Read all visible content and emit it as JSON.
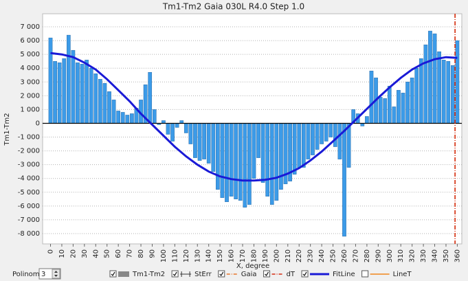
{
  "chart_data": {
    "type": "bar",
    "title": "Tm1-Tm2 Gaia  030L  R4.0  Step 1.0",
    "y_label": "Tm1-Tm2",
    "x_label": "X, degree",
    "xlim": [
      -7,
      364
    ],
    "ylim": [
      -8750,
      7950
    ],
    "xticks": [
      0,
      10,
      20,
      30,
      40,
      50,
      60,
      70,
      80,
      90,
      100,
      110,
      120,
      130,
      140,
      150,
      160,
      170,
      180,
      190,
      200,
      210,
      220,
      230,
      240,
      250,
      260,
      270,
      280,
      290,
      300,
      310,
      320,
      330,
      340,
      350,
      360
    ],
    "yticks": [
      {
        "value": 7000,
        "label": "7 000"
      },
      {
        "value": 6000,
        "label": "6 000"
      },
      {
        "value": 5000,
        "label": "5 000"
      },
      {
        "value": 4000,
        "label": "4 000"
      },
      {
        "value": 3000,
        "label": "3 000"
      },
      {
        "value": 2000,
        "label": "2 000"
      },
      {
        "value": 1000,
        "label": "1 000"
      },
      0,
      {
        "value": -1000,
        "label": "-1 000"
      },
      {
        "value": -2000,
        "label": "-2 000"
      },
      {
        "value": -3000,
        "label": "-3 000"
      },
      {
        "value": -4000,
        "label": "-4 000"
      },
      {
        "value": -5000,
        "label": "-5 000"
      },
      {
        "value": -6000,
        "label": "-6 000"
      },
      {
        "value": -7000,
        "label": "-7 000"
      },
      {
        "value": -8000,
        "label": "-8 000"
      }
    ],
    "grid": true,
    "series": [
      {
        "name": "Tm1-Tm2",
        "kind": "bar",
        "checked": true,
        "color": "#3c9be8",
        "x": [
          0,
          4,
          8,
          12,
          16,
          20,
          24,
          28,
          32,
          36,
          40,
          44,
          48,
          52,
          56,
          60,
          64,
          68,
          72,
          76,
          80,
          84,
          88,
          92,
          96,
          100,
          104,
          108,
          112,
          116,
          120,
          124,
          128,
          132,
          136,
          140,
          144,
          148,
          152,
          156,
          160,
          164,
          168,
          172,
          176,
          180,
          184,
          188,
          192,
          196,
          200,
          204,
          208,
          212,
          216,
          220,
          224,
          228,
          232,
          236,
          240,
          244,
          248,
          252,
          256,
          260,
          264,
          268,
          272,
          276,
          280,
          284,
          288,
          292,
          296,
          300,
          304,
          308,
          312,
          316,
          320,
          324,
          328,
          332,
          336,
          340,
          344,
          348,
          352,
          356,
          360
        ],
        "values": [
          6200,
          4500,
          4400,
          4700,
          6400,
          5300,
          4400,
          4300,
          4600,
          4000,
          3600,
          3200,
          2900,
          2300,
          1700,
          900,
          800,
          600,
          700,
          1100,
          1700,
          2800,
          3700,
          1000,
          -100,
          200,
          -800,
          -1300,
          -300,
          200,
          -700,
          -1500,
          -2500,
          -2700,
          -2600,
          -2900,
          -3500,
          -4800,
          -5400,
          -5700,
          -5300,
          -5500,
          -5600,
          -6100,
          -5900,
          -4000,
          -2500,
          -4300,
          -5300,
          -5900,
          -5600,
          -4800,
          -4400,
          -4200,
          -3700,
          -3200,
          -3200,
          -2600,
          -2300,
          -1900,
          -1500,
          -1300,
          -1000,
          -1700,
          -2600,
          -8200,
          -3200,
          1000,
          700,
          -200,
          500,
          3800,
          3300,
          1900,
          1800,
          2700,
          1200,
          2400,
          2200,
          3000,
          3300,
          4000,
          4700,
          5700,
          6700,
          6500,
          5200,
          4600,
          4500,
          4200,
          6000
        ]
      },
      {
        "name": "StErr",
        "kind": "errorbar",
        "checked": true,
        "color": "#333333"
      },
      {
        "name": "Gaia",
        "kind": "vline",
        "checked": true,
        "color": "#e8762a",
        "x": 358
      },
      {
        "name": "dT",
        "kind": "vline",
        "checked": true,
        "color": "#d42a10",
        "x": 358
      },
      {
        "name": "FitLine",
        "kind": "line",
        "checked": true,
        "color": "#1a1ad6",
        "x": [
          0,
          10,
          20,
          30,
          40,
          50,
          60,
          70,
          80,
          90,
          100,
          110,
          120,
          130,
          140,
          150,
          160,
          170,
          180,
          190,
          200,
          210,
          220,
          230,
          240,
          250,
          260,
          270,
          280,
          290,
          300,
          310,
          320,
          330,
          340,
          350,
          360
        ],
        "values": [
          5100,
          5000,
          4800,
          4400,
          3900,
          3200,
          2400,
          1600,
          700,
          -100,
          -900,
          -1700,
          -2400,
          -3000,
          -3500,
          -3850,
          -4050,
          -4150,
          -4150,
          -4100,
          -3950,
          -3650,
          -3250,
          -2700,
          -2050,
          -1300,
          -550,
          250,
          1050,
          1850,
          2600,
          3300,
          3900,
          4350,
          4650,
          4800,
          4750
        ]
      },
      {
        "name": "LineT",
        "kind": "line",
        "checked": false,
        "color": "#f0a050"
      }
    ]
  },
  "controls": {
    "polinomy_label": "Polinomy",
    "polinomy_value": 3
  }
}
